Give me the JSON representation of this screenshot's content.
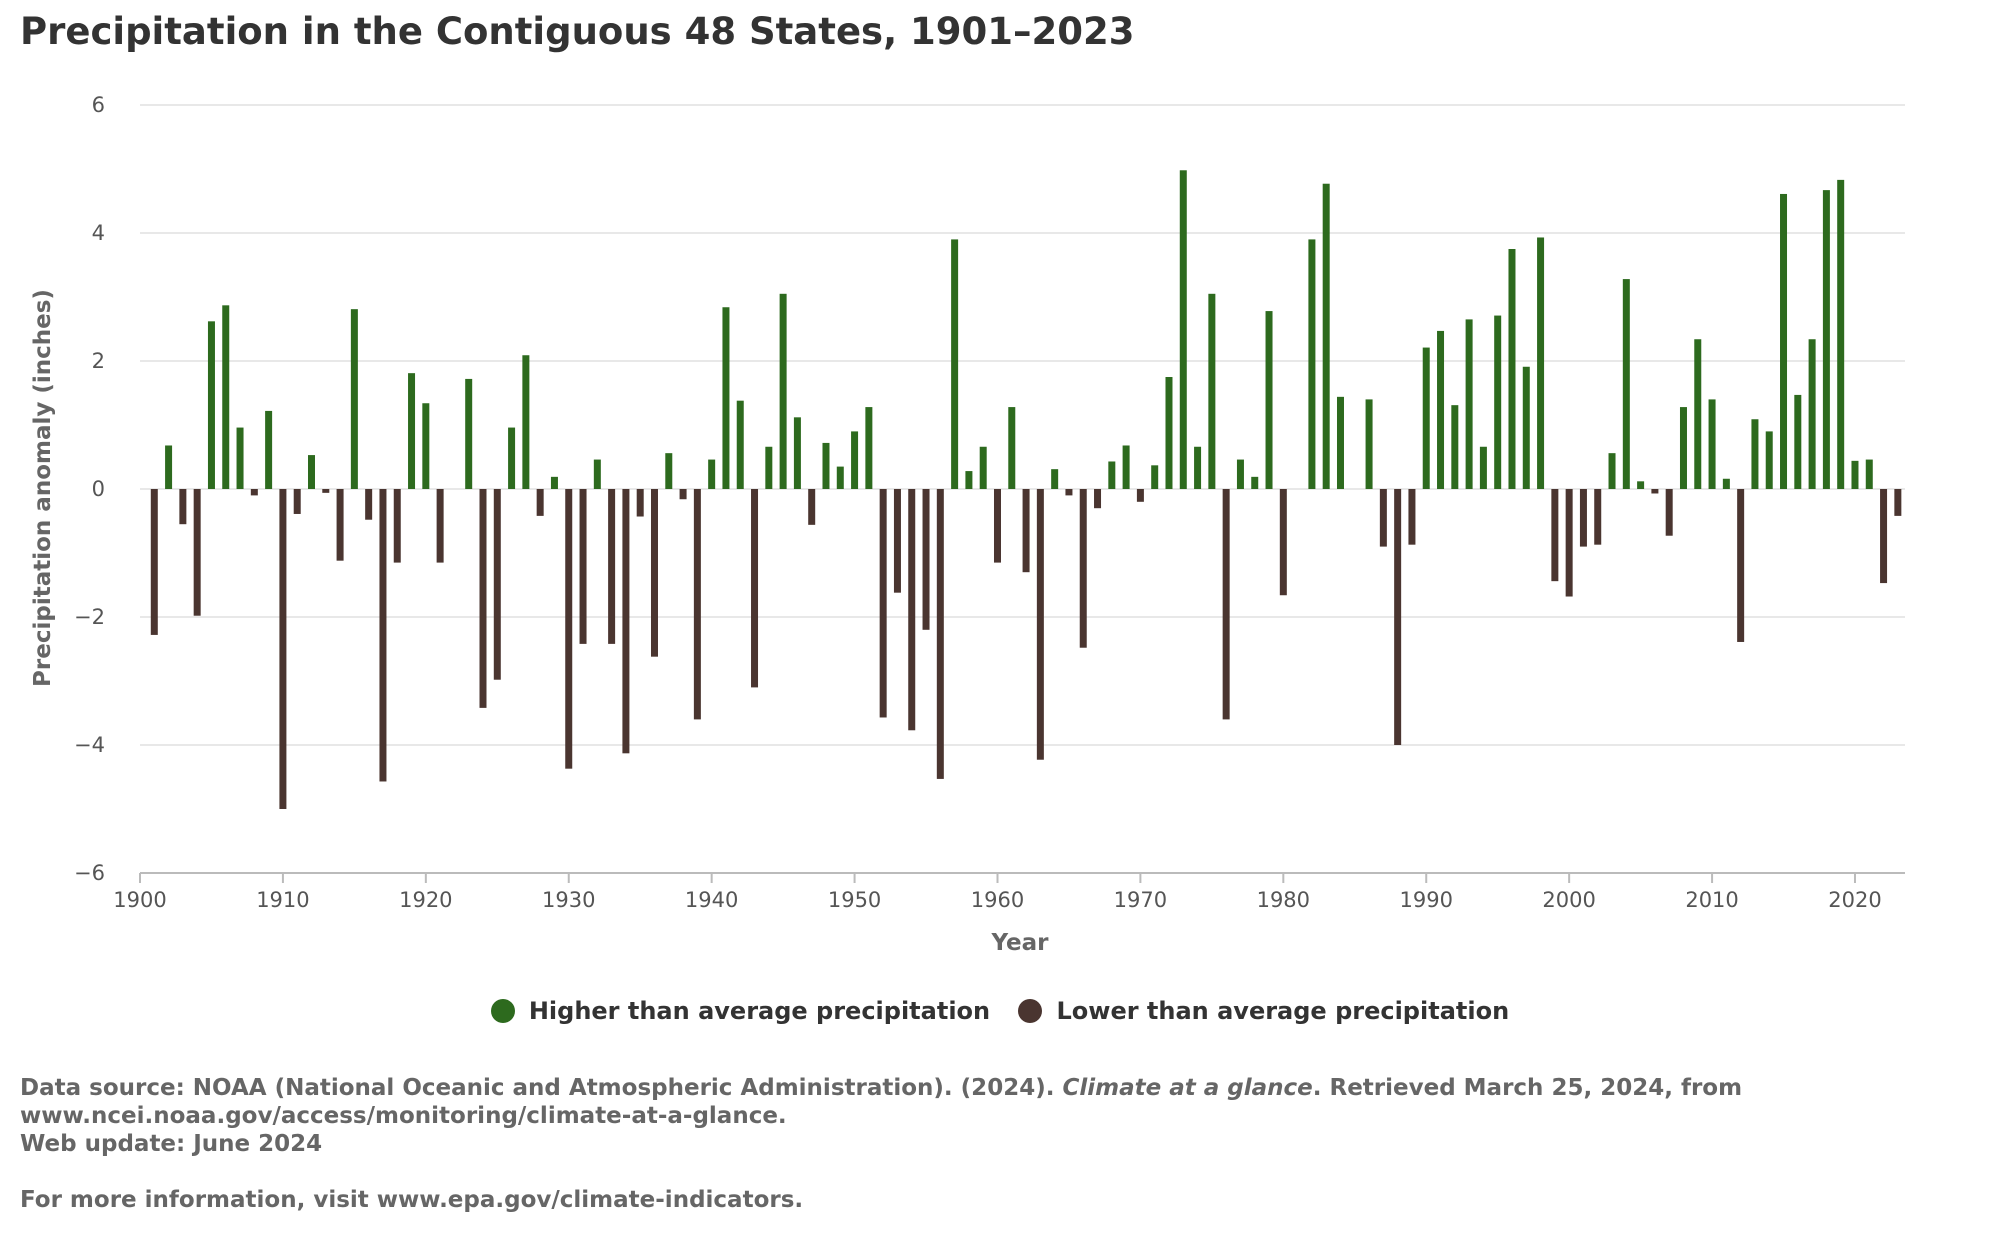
{
  "title": "Precipitation in the Contiguous 48 States, 1901–2023",
  "legend": {
    "higher": "Higher than average precipitation",
    "lower": "Lower than average precipitation"
  },
  "footer": {
    "source_prefix": "Data source: NOAA (National Oceanic and Atmospheric Administration). (2024). ",
    "source_title": "Climate at a glance",
    "source_suffix": ". Retrieved March 25, 2024, from",
    "source_url": "www.ncei.noaa.gov/access/monitoring/climate-at-a-glance.",
    "web_update": "Web update: June 2024",
    "more_info": "For more information, visit www.epa.gov/climate-indicators."
  },
  "colors": {
    "higher": "#2d6a1e",
    "lower": "#4a3530",
    "grid": "#e0e0e0",
    "axis": "#bbbbbb"
  },
  "chart_data": {
    "type": "bar",
    "xlabel": "Year",
    "ylabel": "Precipitation anomaly (inches)",
    "ylim": [
      -6,
      6
    ],
    "yticks": [
      6,
      4,
      2,
      0,
      -2,
      -4,
      -6
    ],
    "yticklabels": [
      "6",
      "4",
      "2",
      "0",
      "−2",
      "−4",
      "−6"
    ],
    "xlim": [
      1900,
      2023
    ],
    "xticks": [
      1900,
      1910,
      1920,
      1930,
      1940,
      1950,
      1960,
      1970,
      1980,
      1990,
      2000,
      2010,
      2020
    ],
    "grid": true,
    "legend_position": "bottom-center",
    "series": [
      {
        "name": "Precipitation anomaly",
        "x": [
          1901,
          1902,
          1903,
          1904,
          1905,
          1906,
          1907,
          1908,
          1909,
          1910,
          1911,
          1912,
          1913,
          1914,
          1915,
          1916,
          1917,
          1918,
          1919,
          1920,
          1921,
          1922,
          1923,
          1924,
          1925,
          1926,
          1927,
          1928,
          1929,
          1930,
          1931,
          1932,
          1933,
          1934,
          1935,
          1936,
          1937,
          1938,
          1939,
          1940,
          1941,
          1942,
          1943,
          1944,
          1945,
          1946,
          1947,
          1948,
          1949,
          1950,
          1951,
          1952,
          1953,
          1954,
          1955,
          1956,
          1957,
          1958,
          1959,
          1960,
          1961,
          1962,
          1963,
          1964,
          1965,
          1966,
          1967,
          1968,
          1969,
          1970,
          1971,
          1972,
          1973,
          1974,
          1975,
          1976,
          1977,
          1978,
          1979,
          1980,
          1981,
          1982,
          1983,
          1984,
          1985,
          1986,
          1987,
          1988,
          1989,
          1990,
          1991,
          1992,
          1993,
          1994,
          1995,
          1996,
          1997,
          1998,
          1999,
          2000,
          2001,
          2002,
          2003,
          2004,
          2005,
          2006,
          2007,
          2008,
          2009,
          2010,
          2011,
          2012,
          2013,
          2014,
          2015,
          2016,
          2017,
          2018,
          2019,
          2020,
          2021,
          2022,
          2023
        ],
        "values": [
          -2.28,
          0.68,
          -0.55,
          -1.98,
          2.62,
          2.87,
          0.96,
          -0.1,
          1.22,
          -5.0,
          -0.39,
          0.53,
          -0.06,
          -1.12,
          2.81,
          -0.48,
          -4.57,
          -1.15,
          1.81,
          1.34,
          -1.15,
          0,
          1.72,
          -3.42,
          -2.98,
          0.96,
          2.09,
          -0.42,
          0.19,
          -4.37,
          -2.42,
          0.46,
          -2.42,
          -4.13,
          -0.43,
          -2.62,
          0.56,
          -0.16,
          -3.6,
          0.46,
          2.84,
          1.38,
          -3.1,
          0.66,
          3.05,
          1.12,
          -0.56,
          0.72,
          0.35,
          0.9,
          1.28,
          -3.57,
          -1.62,
          -3.77,
          -2.2,
          -4.53,
          3.9,
          0.28,
          0.66,
          -1.15,
          1.28,
          -1.3,
          -4.23,
          0.31,
          -0.1,
          -2.48,
          -0.3,
          0.43,
          0.68,
          -0.2,
          0.37,
          1.75,
          4.98,
          0.66,
          3.05,
          -3.6,
          0.46,
          0.19,
          2.78,
          -1.66,
          0,
          3.9,
          4.77,
          1.44,
          0,
          1.4,
          -0.9,
          -4.0,
          -0.87,
          2.21,
          2.47,
          1.31,
          2.65,
          0.66,
          2.71,
          3.75,
          1.91,
          3.93,
          -1.44,
          -1.68,
          -0.9,
          -0.87,
          0.56,
          3.28,
          0.12,
          -0.07,
          -0.73,
          1.28,
          2.34,
          1.4,
          0.16,
          -2.39,
          1.09,
          0.9,
          4.61,
          1.47,
          2.34,
          4.67,
          4.83,
          0.44,
          0.46,
          -1.47,
          -0.42
        ]
      }
    ]
  }
}
